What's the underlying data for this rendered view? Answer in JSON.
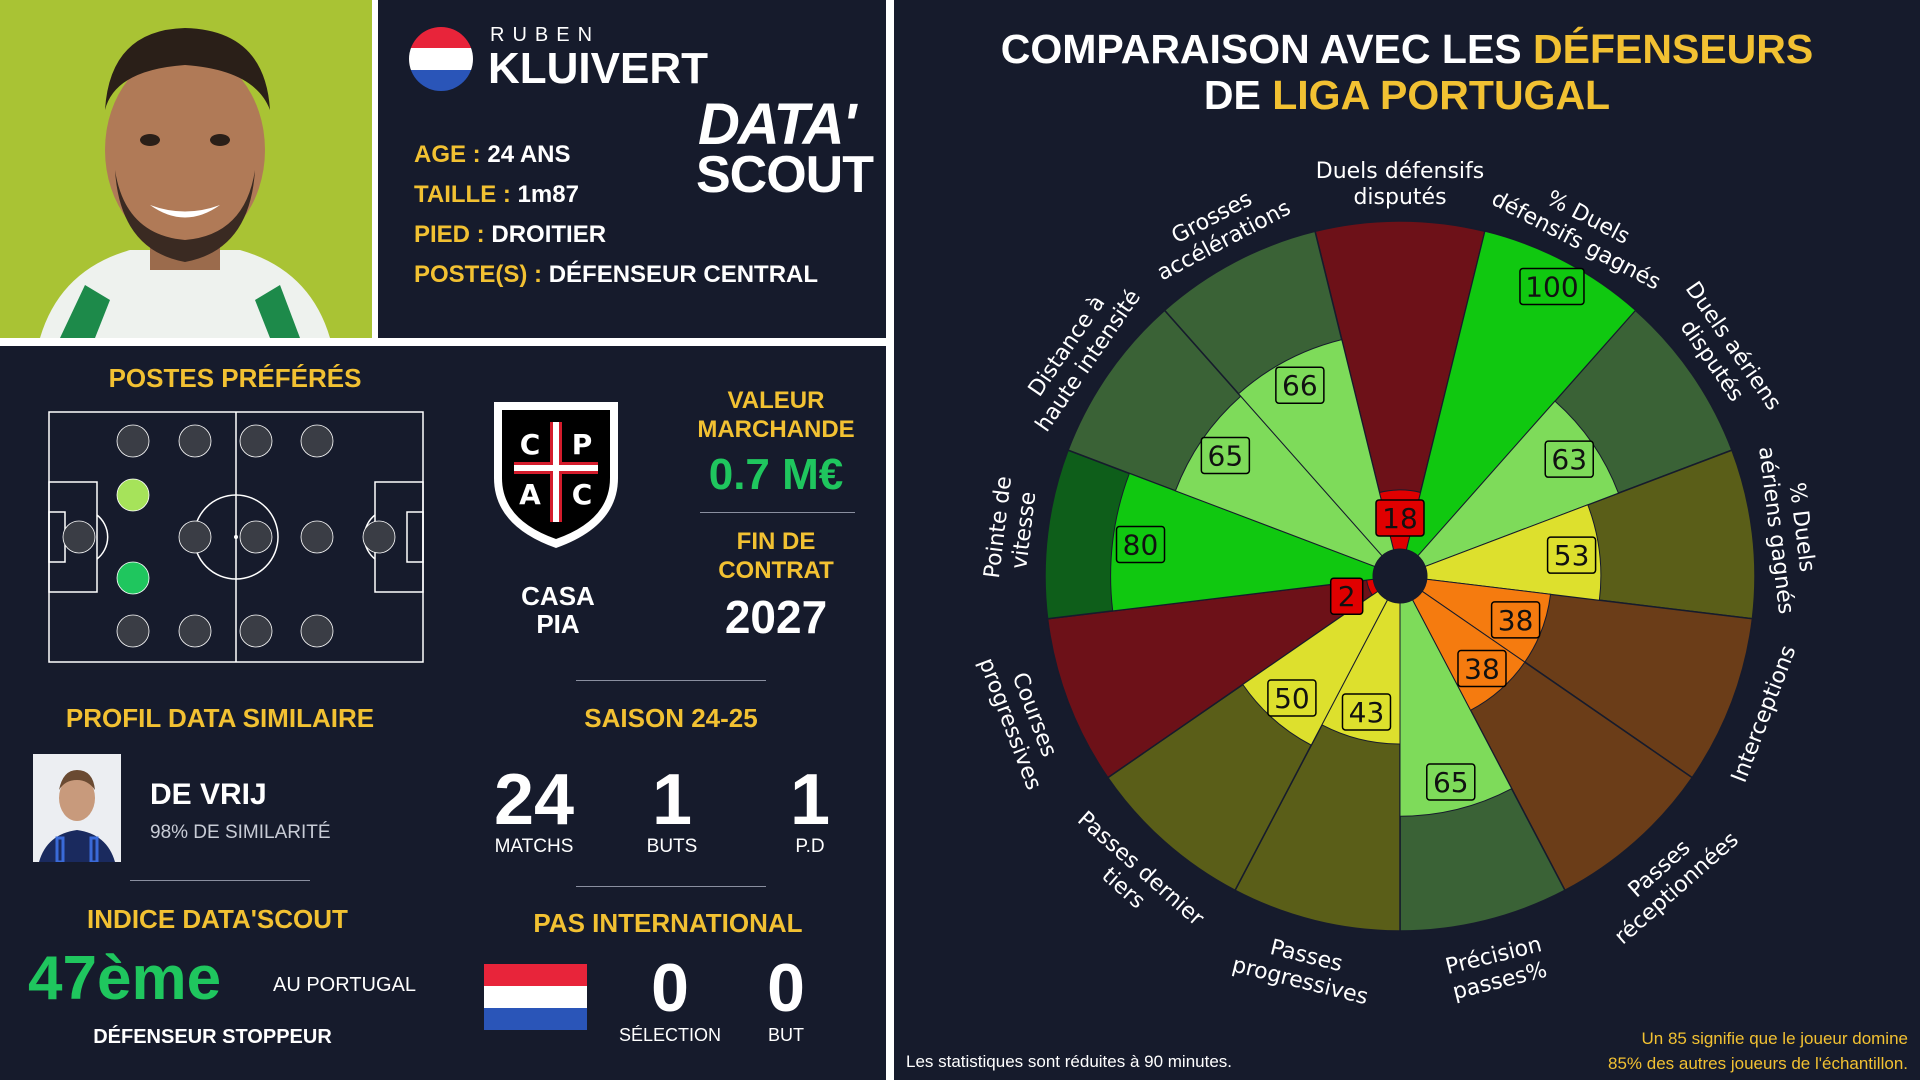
{
  "player": {
    "first_name": "RUBEN",
    "last_name": "KLUIVERT",
    "nationality_flag": "netherlands-flag",
    "age_label": "AGE :",
    "age_value": "24 ANS",
    "height_label": "TAILLE :",
    "height_value": "1m87",
    "foot_label": "PIED :",
    "foot_value": "DROITIER",
    "position_label": "POSTE(S) :",
    "position_value": "DÉFENSEUR CENTRAL"
  },
  "brand": {
    "line1": "DATA'",
    "line2": "SCOUT"
  },
  "preferred_positions": {
    "title": "POSTES PRÉFÉRÉS",
    "highlight_colors": {
      "secondary": "#a6e35a",
      "primary": "#1fc65e",
      "inactive": "#3a3d45"
    }
  },
  "club": {
    "name_line1": "CASA",
    "name_line2": "PIA",
    "crest_letters": [
      "C",
      "P",
      "A",
      "C"
    ]
  },
  "market": {
    "value_title_line1": "VALEUR",
    "value_title_line2": "MARCHANDE",
    "value": "0.7 M€",
    "contract_title_line1": "FIN DE",
    "contract_title_line2": "CONTRAT",
    "contract_end": "2027"
  },
  "similar_profile": {
    "title": "PROFIL DATA SIMILAIRE",
    "name": "DE VRIJ",
    "similarity": "98% DE SIMILARITÉ"
  },
  "season": {
    "title": "SAISON 24-25",
    "stats": [
      {
        "value": "24",
        "label": "MATCHS"
      },
      {
        "value": "1",
        "label": "BUTS"
      },
      {
        "value": "1",
        "label": "P.D"
      }
    ]
  },
  "index": {
    "title": "INDICE DATA'SCOUT",
    "rank": "47ème",
    "scope": "AU PORTUGAL",
    "role": "DÉFENSEUR STOPPEUR"
  },
  "international": {
    "title": "PAS INTERNATIONAL",
    "flag": "netherlands-flag",
    "stats": [
      {
        "value": "0",
        "label": "SÉLECTION"
      },
      {
        "value": "0",
        "label": "BUT"
      }
    ]
  },
  "comparison": {
    "title_line1_a": "COMPARAISON AVEC LES ",
    "title_line1_b": "DÉFENSEURS",
    "title_line2_a": "DE ",
    "title_line2_b": "LIGA PORTUGAL"
  },
  "chart_data": {
    "type": "radial-bar",
    "scale_max": 100,
    "categories": [
      {
        "label": "Duels défensifs disputés",
        "value": 18,
        "color": "#e00000",
        "bg": "#6d1118"
      },
      {
        "label": "% Duels défensifs gagnés",
        "value": 100,
        "color": "#10c810",
        "bg": "#10c810"
      },
      {
        "label": "Duels aériens disputés",
        "value": 63,
        "color": "#7edb5a",
        "bg": "#3a6236"
      },
      {
        "label": "% Duels aériens gagnés",
        "value": 53,
        "color": "#dde02d",
        "bg": "#5a5e18"
      },
      {
        "label": "Interceptions",
        "value": 38,
        "color": "#f57b0f",
        "bg": "#6b3d18"
      },
      {
        "label": "Passes réceptionnées",
        "value": 38,
        "color": "#f57b0f",
        "bg": "#6b3d18"
      },
      {
        "label": "Précision passes%",
        "value": 65,
        "color": "#7edb5a",
        "bg": "#3a6236"
      },
      {
        "label": "Passes progressives",
        "value": 43,
        "color": "#dde02d",
        "bg": "#5a5e18"
      },
      {
        "label": "Passes dernier tiers",
        "value": 50,
        "color": "#dde02d",
        "bg": "#5a5e18"
      },
      {
        "label": "Courses progressives",
        "value": 2,
        "color": "#e00000",
        "bg": "#6d1118"
      },
      {
        "label": "Pointe de vitesse",
        "value": 80,
        "color": "#10c810",
        "bg": "#0e5e1a"
      },
      {
        "label": "Distance à haute intensité",
        "value": 65,
        "color": "#7edb5a",
        "bg": "#3a6236"
      },
      {
        "label": "Grosses accélérations",
        "value": 66,
        "color": "#7edb5a",
        "bg": "#3a6236"
      }
    ]
  },
  "footnotes": {
    "per90": "Les statistiques sont réduites à 90 minutes.",
    "explain_line1": "Un 85 signifie que le joueur domine",
    "explain_line2": "85% des autres joueurs de l'échantillon."
  }
}
